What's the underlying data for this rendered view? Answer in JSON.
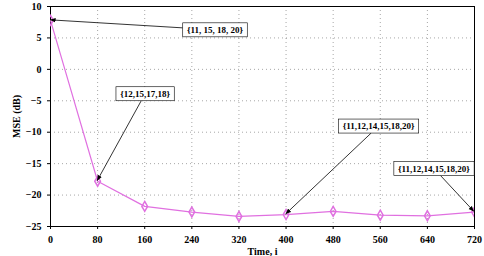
{
  "chart_data": {
    "type": "line",
    "x_label": "Time, i",
    "y_label": "MSE (dB)",
    "x": [
      0,
      80,
      160,
      240,
      320,
      400,
      480,
      560,
      640,
      720
    ],
    "values": [
      7.8,
      -17.8,
      -21.8,
      -22.7,
      -23.4,
      -23.1,
      -22.6,
      -23.2,
      -23.3,
      -22.7
    ],
    "color": "#e070e0",
    "marker": "diamond",
    "xlim": [
      0,
      720
    ],
    "xticks": [
      0,
      80,
      160,
      240,
      320,
      400,
      480,
      560,
      640,
      720
    ],
    "ylim": [
      -25,
      10
    ],
    "yticks": [
      -25,
      -20,
      -15,
      -10,
      -5,
      0,
      5,
      10
    ],
    "grid": true,
    "annotations": [
      {
        "text": "{11, 15, 18, 20}",
        "x": 0,
        "y": 7.8
      },
      {
        "text": "{12,15,17,18}",
        "x": 80,
        "y": -17.8
      },
      {
        "text": "{11,12,14,15,18,20}",
        "x": 400,
        "y": -23.1
      },
      {
        "text": "{11,12,14,15,18,20}",
        "x": 720,
        "y": -22.7
      }
    ]
  }
}
